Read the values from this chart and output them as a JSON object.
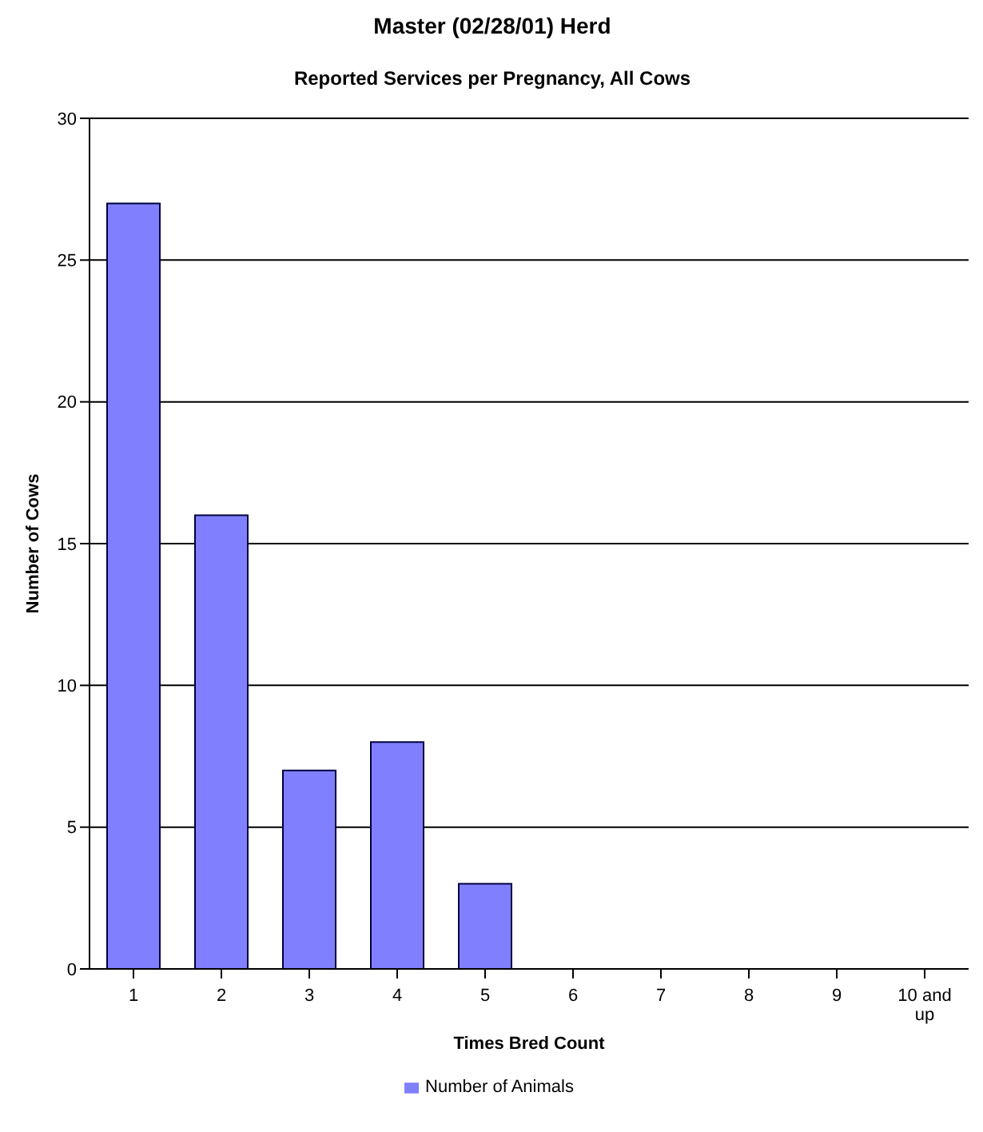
{
  "chart_data": {
    "type": "bar",
    "title": "Master  (02/28/01) Herd",
    "subtitle": "Reported Services per Pregnancy, All Cows",
    "xlabel": "Times Bred Count",
    "ylabel": "Number of Cows",
    "categories": [
      "1",
      "2",
      "3",
      "4",
      "5",
      "6",
      "7",
      "8",
      "9",
      "10 and up"
    ],
    "series": [
      {
        "name": "Number of Animals",
        "color": "#8080ff",
        "values": [
          27,
          16,
          7,
          8,
          3,
          0,
          0,
          0,
          0,
          0
        ]
      }
    ],
    "ylim": [
      0,
      30
    ],
    "yticks": [
      0,
      5,
      10,
      15,
      20,
      25,
      30
    ],
    "grid": "y",
    "legend": "bottom"
  }
}
